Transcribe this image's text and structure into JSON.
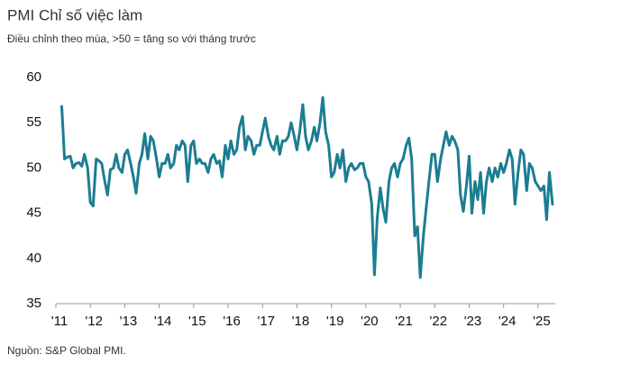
{
  "chart_data": {
    "type": "line",
    "title": "PMI Chỉ số việc làm",
    "subtitle": "Điều chỉnh theo mùa, >50 = tăng so với tháng trước",
    "source": "Nguồn: S&P Global PMI.",
    "color": "#1b7d92",
    "xlim": [
      2011,
      2025.5
    ],
    "xticks": [
      {
        "value": 2011,
        "label": "'11"
      },
      {
        "value": 2012,
        "label": "'12"
      },
      {
        "value": 2013,
        "label": "'13"
      },
      {
        "value": 2014,
        "label": "'14"
      },
      {
        "value": 2015,
        "label": "'15"
      },
      {
        "value": 2016,
        "label": "'16"
      },
      {
        "value": 2017,
        "label": "'17"
      },
      {
        "value": 2018,
        "label": "'18"
      },
      {
        "value": 2019,
        "label": "'19"
      },
      {
        "value": 2020,
        "label": "'20"
      },
      {
        "value": 2021,
        "label": "'21"
      },
      {
        "value": 2022,
        "label": "'22"
      },
      {
        "value": 2023,
        "label": "'23"
      },
      {
        "value": 2024,
        "label": "'24"
      },
      {
        "value": 2025,
        "label": "'25"
      }
    ],
    "ylim": [
      35,
      60
    ],
    "yticks": [
      35,
      40,
      45,
      50,
      55,
      60
    ],
    "x": [
      2011.17,
      2011.25,
      2011.33,
      2011.42,
      2011.5,
      2011.58,
      2011.67,
      2011.75,
      2011.83,
      2011.92,
      2012,
      2012.08,
      2012.17,
      2012.25,
      2012.33,
      2012.42,
      2012.5,
      2012.58,
      2012.67,
      2012.75,
      2012.83,
      2012.92,
      2013,
      2013.08,
      2013.17,
      2013.25,
      2013.33,
      2013.42,
      2013.5,
      2013.58,
      2013.67,
      2013.75,
      2013.83,
      2013.92,
      2014,
      2014.08,
      2014.17,
      2014.25,
      2014.33,
      2014.42,
      2014.5,
      2014.58,
      2014.67,
      2014.75,
      2014.83,
      2014.92,
      2015,
      2015.08,
      2015.17,
      2015.25,
      2015.33,
      2015.42,
      2015.5,
      2015.58,
      2015.67,
      2015.75,
      2015.83,
      2015.92,
      2016,
      2016.08,
      2016.17,
      2016.25,
      2016.33,
      2016.42,
      2016.5,
      2016.58,
      2016.67,
      2016.75,
      2016.83,
      2016.92,
      2017,
      2017.08,
      2017.17,
      2017.25,
      2017.33,
      2017.42,
      2017.5,
      2017.58,
      2017.67,
      2017.75,
      2017.83,
      2017.92,
      2018,
      2018.08,
      2018.17,
      2018.25,
      2018.33,
      2018.42,
      2018.5,
      2018.58,
      2018.67,
      2018.75,
      2018.83,
      2018.92,
      2019,
      2019.08,
      2019.17,
      2019.25,
      2019.33,
      2019.42,
      2019.5,
      2019.58,
      2019.67,
      2019.75,
      2019.83,
      2019.92,
      2020,
      2020.08,
      2020.17,
      2020.25,
      2020.33,
      2020.42,
      2020.5,
      2020.58,
      2020.67,
      2020.75,
      2020.83,
      2020.92,
      2021,
      2021.08,
      2021.17,
      2021.25,
      2021.33,
      2021.42,
      2021.5,
      2021.58,
      2021.67,
      2021.75,
      2021.83,
      2021.92,
      2022,
      2022.08,
      2022.17,
      2022.25,
      2022.33,
      2022.42,
      2022.5,
      2022.58,
      2022.67,
      2022.75,
      2022.83,
      2022.92,
      2023,
      2023.08,
      2023.17,
      2023.25,
      2023.33,
      2023.42,
      2023.5,
      2023.58,
      2023.67,
      2023.75,
      2023.83,
      2023.92,
      2024,
      2024.08,
      2024.17,
      2024.25,
      2024.33,
      2024.42,
      2024.5,
      2024.58,
      2024.67,
      2024.75,
      2024.83,
      2024.92,
      2025,
      2025.08,
      2025.17,
      2025.25,
      2025.33,
      2025.42
    ],
    "values": [
      56.8,
      51.0,
      51.2,
      51.3,
      50.0,
      50.5,
      50.6,
      50.2,
      51.5,
      50.0,
      46.2,
      45.8,
      51.0,
      50.8,
      50.5,
      48.5,
      47.0,
      49.8,
      50.0,
      51.5,
      50.0,
      49.5,
      51.5,
      52.0,
      50.5,
      49.0,
      47.2,
      50.5,
      51.5,
      53.8,
      51.0,
      53.5,
      53.0,
      51.0,
      49.0,
      50.5,
      50.5,
      51.5,
      50.0,
      50.5,
      52.5,
      52.0,
      53.0,
      52.5,
      48.5,
      52.5,
      53.0,
      50.5,
      51.0,
      50.5,
      50.5,
      49.5,
      51.0,
      51.5,
      50.5,
      50.8,
      49.0,
      52.5,
      51.0,
      53.0,
      51.5,
      52.0,
      54.5,
      55.7,
      52.0,
      53.5,
      53.0,
      51.5,
      52.5,
      52.5,
      54.0,
      55.5,
      53.5,
      52.5,
      52.0,
      53.5,
      51.5,
      53.0,
      53.0,
      53.5,
      55.0,
      53.5,
      52.0,
      54.0,
      57.0,
      53.5,
      52.0,
      53.0,
      54.5,
      53.0,
      55.0,
      57.8,
      54.0,
      52.5,
      49.0,
      49.5,
      51.5,
      50.0,
      52.0,
      48.5,
      50.0,
      50.5,
      49.8,
      50.0,
      50.5,
      50.5,
      49.0,
      48.5,
      46.0,
      38.2,
      44.5,
      47.8,
      45.5,
      44.0,
      48.5,
      50.0,
      50.5,
      49.0,
      50.5,
      51.0,
      52.5,
      53.3,
      51.0,
      42.5,
      43.5,
      37.9,
      42.5,
      45.5,
      48.5,
      51.5,
      51.5,
      48.5,
      51.0,
      52.5,
      54.0,
      52.5,
      53.5,
      53.0,
      52.0,
      47.0,
      45.2,
      48.0,
      51.3,
      45.0,
      48.5,
      46.5,
      49.5,
      45.0,
      48.5,
      50.0,
      48.5,
      50.0,
      49.0,
      50.5,
      49.5,
      50.5,
      52.0,
      51.0,
      46.0,
      49.5,
      52.0,
      51.5,
      47.5,
      50.5,
      50.0,
      48.5,
      48.0,
      47.5,
      48.0,
      44.3,
      49.5,
      46.0
    ]
  }
}
